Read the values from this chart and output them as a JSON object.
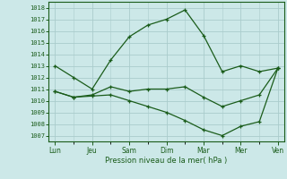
{
  "xlabel": "Pression niveau de la mer( hPa )",
  "bg_color": "#cce8e8",
  "grid_color": "#aacccc",
  "line_color": "#1a5c1a",
  "ylim": [
    1006.5,
    1018.5
  ],
  "yticks": [
    1007,
    1008,
    1009,
    1010,
    1011,
    1012,
    1013,
    1014,
    1015,
    1016,
    1017,
    1018
  ],
  "day_labels": [
    "Lun",
    "Jeu",
    "Sam",
    "Dim",
    "Mar",
    "Mer",
    "Ven"
  ],
  "day_positions": [
    0,
    12,
    24,
    36,
    48,
    60,
    72
  ],
  "xlim": [
    -2,
    74
  ],
  "num_ticks": 73,
  "series1_x": [
    0,
    6,
    12,
    18,
    24,
    30,
    36,
    42,
    48,
    54,
    60,
    66,
    72
  ],
  "series1_y": [
    1013.0,
    1012.0,
    1011.0,
    1013.5,
    1015.5,
    1016.5,
    1017.0,
    1017.8,
    1015.6,
    1012.5,
    1013.0,
    1012.5,
    1012.8
  ],
  "series2_x": [
    0,
    6,
    12,
    18,
    24,
    30,
    36,
    42,
    48,
    54,
    60,
    66,
    72
  ],
  "series2_y": [
    1010.8,
    1010.3,
    1010.5,
    1011.2,
    1010.8,
    1011.0,
    1011.0,
    1011.2,
    1010.3,
    1009.5,
    1010.0,
    1010.5,
    1012.8
  ],
  "series3_x": [
    0,
    6,
    12,
    18,
    24,
    30,
    36,
    42,
    48,
    54,
    60,
    66,
    72
  ],
  "series3_y": [
    1010.8,
    1010.3,
    1010.4,
    1010.5,
    1010.0,
    1009.5,
    1009.0,
    1008.3,
    1007.5,
    1007.0,
    1007.8,
    1008.2,
    1012.8
  ]
}
